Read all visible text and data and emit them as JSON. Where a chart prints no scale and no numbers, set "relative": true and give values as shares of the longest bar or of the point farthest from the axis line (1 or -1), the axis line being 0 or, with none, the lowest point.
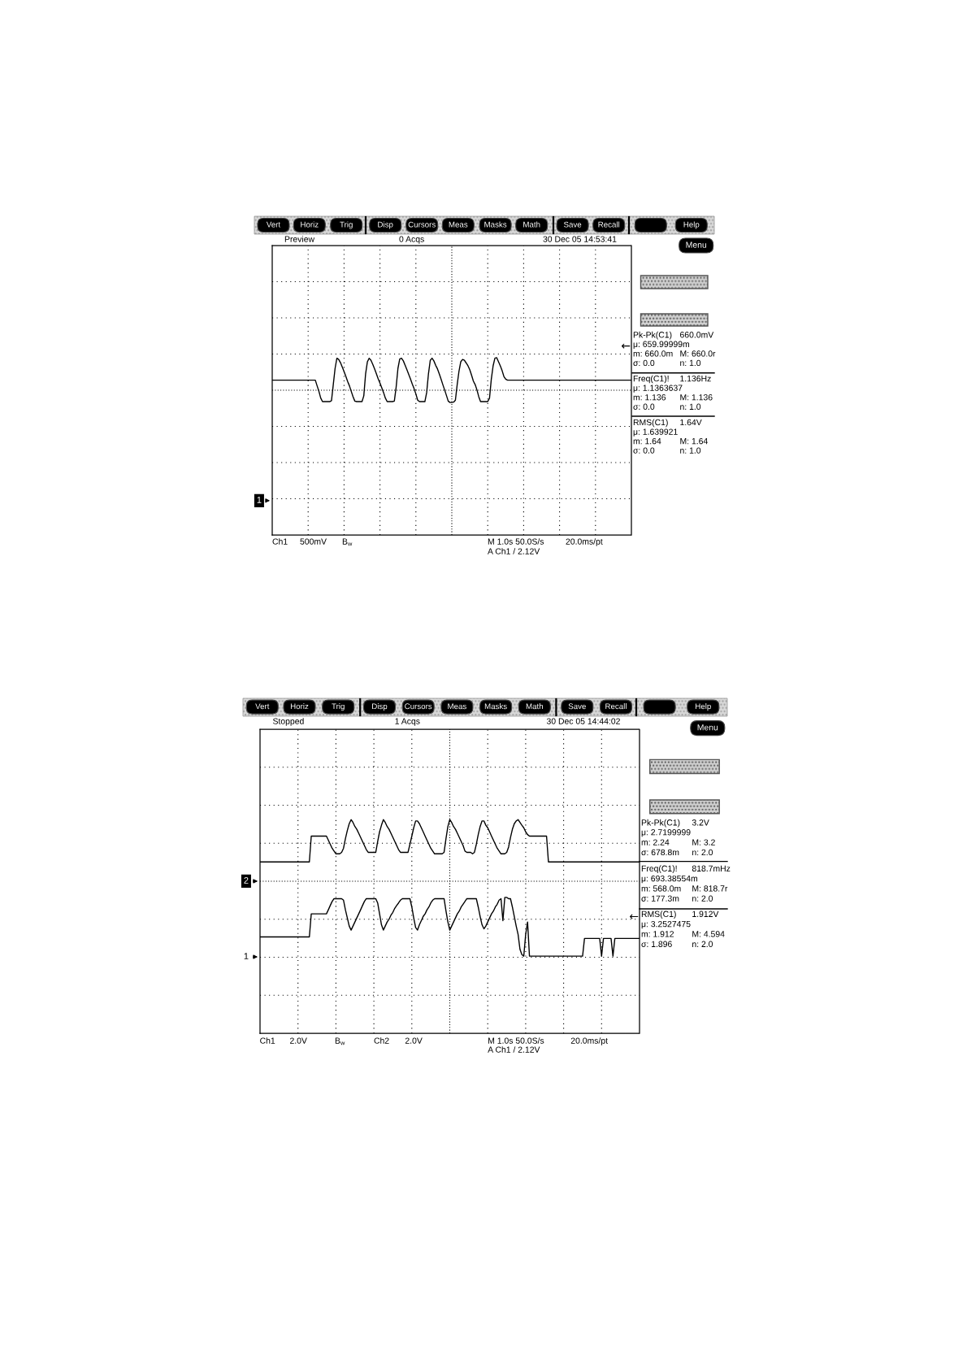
{
  "chart_data": [
    {
      "type": "line",
      "relative": true,
      "grid": true,
      "line_style": "solid",
      "categories": [
        null,
        null,
        null,
        null,
        null,
        null,
        null,
        null,
        null,
        null,
        null,
        null,
        null,
        null,
        null,
        null,
        null,
        null,
        null,
        null,
        null,
        null,
        null,
        null,
        null,
        null,
        null,
        null,
        null,
        null,
        null,
        null,
        null,
        null,
        null,
        null,
        null,
        null,
        null,
        null,
        null,
        null,
        null,
        null,
        null,
        null,
        null,
        null,
        null,
        null,
        null,
        null,
        null,
        null,
        null,
        null,
        null,
        null,
        null,
        null,
        null,
        null,
        null,
        null,
        null,
        null,
        null,
        null,
        null,
        null,
        null,
        null,
        null,
        null,
        null,
        null,
        null,
        null,
        null,
        null,
        null,
        null,
        null,
        null,
        null,
        null,
        null,
        null,
        null,
        null,
        null,
        null,
        null,
        null,
        null,
        null,
        null,
        null,
        null,
        null,
        null,
        null,
        null,
        null,
        null,
        null,
        null,
        null,
        null,
        null,
        null,
        null,
        null,
        null,
        null,
        null,
        null,
        null,
        null,
        null,
        null,
        null,
        null,
        null,
        null,
        null,
        null,
        null,
        null,
        null,
        null,
        null,
        null,
        null,
        null,
        null,
        null,
        null,
        null,
        null,
        null,
        null,
        null,
        null,
        null,
        null,
        null,
        null,
        null,
        null,
        null,
        null,
        null,
        null,
        null,
        null,
        null,
        null,
        null,
        null,
        null,
        null,
        null,
        null,
        null,
        null,
        null,
        null,
        null,
        null,
        null,
        null,
        null,
        null,
        null,
        null,
        null,
        null,
        null,
        null,
        null,
        null,
        null,
        null,
        null,
        null,
        null,
        null,
        null,
        null,
        null,
        null,
        null,
        null,
        null,
        null,
        null,
        null,
        null,
        null,
        null
      ],
      "series": [
        {
          "color": "#000000",
          "values": [
            0.873,
            0.873,
            0.873,
            0.873,
            0.873,
            0.873,
            0.873,
            0.873,
            0.873,
            0.873,
            0.873,
            0.873,
            0.873,
            0.873,
            0.873,
            0.873,
            0.873,
            0.873,
            0.873,
            0.873,
            0.873,
            0.873,
            0.873,
            0.873,
            0.873,
            0.841,
            0.81,
            0.772,
            0.752,
            0.752,
            0.752,
            0.752,
            0.752,
            0.757,
            0.848,
            0.939,
            0.997,
            0.99,
            0.972,
            0.947,
            0.922,
            0.894,
            0.866,
            0.841,
            0.81,
            0.78,
            0.755,
            0.752,
            0.752,
            0.752,
            0.752,
            0.785,
            0.909,
            0.977,
            0.997,
            0.985,
            0.962,
            0.937,
            0.909,
            0.881,
            0.856,
            0.83,
            0.803,
            0.772,
            0.752,
            0.752,
            0.752,
            0.752,
            0.755,
            0.833,
            0.939,
            0.992,
            0.997,
            0.982,
            0.957,
            0.932,
            0.906,
            0.879,
            0.851,
            0.825,
            0.795,
            0.76,
            0.752,
            0.752,
            0.752,
            0.752,
            0.803,
            0.909,
            0.985,
            0.997,
            0.982,
            0.957,
            0.937,
            0.909,
            0.879,
            0.848,
            0.818,
            0.787,
            0.755,
            0.747,
            0.747,
            0.749,
            0.76,
            0.848,
            0.924,
            0.977,
            0.99,
            0.985,
            0.97,
            0.954,
            0.932,
            0.901,
            0.868,
            0.848,
            0.818,
            0.78,
            0.752,
            0.752,
            0.752,
            0.752,
            0.752,
            0.772,
            0.879,
            0.954,
            0.997,
            1.0,
            0.977,
            0.954,
            0.927,
            0.894,
            0.879,
            0.873,
            0.873,
            0.873,
            0.873,
            0.873,
            0.873,
            0.873,
            0.873,
            0.873,
            0.873,
            0.873,
            0.873,
            0.873,
            0.873,
            0.873,
            0.873,
            0.873,
            0.873,
            0.873,
            0.873,
            0.873,
            0.873,
            0.873,
            0.873,
            0.873,
            0.873,
            0.873,
            0.873,
            0.873,
            0.873,
            0.873,
            0.873,
            0.873,
            0.873,
            0.873,
            0.873,
            0.873,
            0.873,
            0.873,
            0.873,
            0.873,
            0.873,
            0.873,
            0.873,
            0.873,
            0.873,
            0.873,
            0.873,
            0.873,
            0.873,
            0.873,
            0.873,
            0.873,
            0.873,
            0.873,
            0.873,
            0.873,
            0.873,
            0.873,
            0.873,
            0.873,
            0.873,
            0.873,
            0.873,
            0.873,
            0.873,
            0.873,
            0.873,
            0.873,
            0.873
          ]
        }
      ],
      "annotations": [
        "Vert",
        "Horiz",
        "Trig",
        "Disp",
        "Cursors",
        "Meas",
        "Masks",
        "Math",
        "Save",
        "Recall",
        "Help",
        "Menu",
        "Preview",
        "0 Acqs",
        "30 Dec 05 14:53:41",
        "Pk-Pk(C1)",
        "660.0mV",
        "μ: 659.99999m",
        "m: 660.0m",
        "M: 660.0r",
        "σ: 0.0",
        "n: 1.0",
        "Freq(C1)!",
        "1.136Hz",
        "μ: 1.1363637",
        "m: 1.136",
        "M: 1.136",
        "σ: 0.0",
        "n: 1.0",
        "RMS(C1)",
        "1.64V",
        "μ: 1.639921",
        "m: 1.64",
        "M: 1.64",
        "σ: 0.0",
        "n: 1.0",
        "Ch1",
        "500mV",
        "B$_{w}$",
        "M 1.0s 50.0S/s",
        "20.0ms/pt",
        "A Ch1 / 2.12V",
        "1",
        "←"
      ]
    },
    {
      "type": "line",
      "relative": true,
      "grid": true,
      "line_style": "solid",
      "categories": [
        null,
        null,
        null,
        null,
        null,
        null,
        null,
        null,
        null,
        null,
        null,
        null,
        null,
        null,
        null,
        null,
        null,
        null,
        null,
        null,
        null,
        null,
        null,
        null,
        null,
        null,
        null,
        null,
        null,
        null,
        null,
        null,
        null,
        null,
        null,
        null,
        null,
        null,
        null,
        null,
        null,
        null,
        null,
        null,
        null,
        null,
        null,
        null,
        null,
        null,
        null,
        null,
        null,
        null,
        null,
        null,
        null,
        null,
        null,
        null,
        null,
        null,
        null,
        null,
        null,
        null,
        null,
        null,
        null,
        null,
        null,
        null,
        null,
        null,
        null,
        null,
        null,
        null,
        null,
        null,
        null,
        null,
        null,
        null,
        null,
        null,
        null,
        null,
        null,
        null,
        null,
        null,
        null,
        null,
        null,
        null,
        null,
        null,
        null,
        null,
        null,
        null,
        null,
        null,
        null,
        null,
        null,
        null,
        null,
        null,
        null,
        null,
        null,
        null,
        null,
        null,
        null,
        null,
        null,
        null,
        null,
        null,
        null,
        null,
        null,
        null,
        null,
        null,
        null,
        null,
        null,
        null,
        null,
        null,
        null,
        null,
        null,
        null,
        null,
        null,
        null,
        null,
        null,
        null,
        null,
        null,
        null,
        null,
        null,
        null,
        null,
        null,
        null,
        null,
        null,
        null,
        null,
        null,
        null,
        null,
        null,
        null,
        null,
        null,
        null,
        null,
        null,
        null,
        null,
        null,
        null,
        null,
        null,
        null,
        null,
        null,
        null,
        null,
        null,
        null,
        null,
        null,
        null,
        null,
        null,
        null,
        null,
        null,
        null,
        null,
        null,
        null,
        null,
        null,
        null,
        null,
        null,
        null,
        null,
        null,
        null
      ],
      "series": [
        {
          "color": "#000000",
          "values": [
            0.802,
            0.802,
            0.802,
            0.802,
            0.802,
            0.802,
            0.802,
            0.802,
            0.802,
            0.802,
            0.802,
            0.802,
            0.802,
            0.802,
            0.802,
            0.802,
            0.802,
            0.802,
            0.802,
            0.802,
            0.802,
            0.802,
            0.802,
            0.802,
            0.802,
            0.802,
            0.802,
            0.923,
            0.923,
            0.923,
            0.923,
            0.923,
            0.923,
            0.923,
            0.923,
            0.923,
            0.904,
            0.885,
            0.866,
            0.853,
            0.84,
            0.84,
            0.84,
            0.847,
            0.866,
            0.911,
            0.949,
            0.981,
            1.0,
            0.987,
            0.968,
            0.955,
            0.936,
            0.917,
            0.898,
            0.879,
            0.86,
            0.847,
            0.847,
            0.847,
            0.847,
            0.847,
            0.898,
            0.943,
            0.974,
            1.0,
            0.987,
            0.968,
            0.955,
            0.936,
            0.917,
            0.898,
            0.879,
            0.86,
            0.847,
            0.847,
            0.847,
            0.847,
            0.847,
            0.885,
            0.923,
            0.962,
            0.994,
            0.994,
            0.981,
            0.962,
            0.943,
            0.923,
            0.904,
            0.885,
            0.866,
            0.853,
            0.84,
            0.84,
            0.84,
            0.84,
            0.84,
            0.847,
            0.911,
            0.968,
            1.0,
            0.987,
            0.968,
            0.955,
            0.936,
            0.917,
            0.898,
            0.879,
            0.853,
            0.847,
            0.847,
            0.847,
            0.84,
            0.847,
            0.885,
            0.93,
            0.968,
            0.994,
            0.994,
            0.974,
            0.962,
            0.943,
            0.923,
            0.904,
            0.885,
            0.866,
            0.853,
            0.84,
            0.84,
            0.84,
            0.847,
            0.872,
            0.917,
            0.955,
            0.981,
            0.994,
            1.0,
            0.987,
            0.974,
            0.962,
            0.943,
            0.93,
            0.923,
            0.923,
            0.923,
            0.923,
            0.923,
            0.923,
            0.923,
            0.923,
            0.923,
            0.923,
            0.802,
            0.802,
            0.802,
            0.802,
            0.802,
            0.802,
            0.802,
            0.802,
            0.802,
            0.802,
            0.802,
            0.802,
            0.802,
            0.802,
            0.802,
            0.802,
            0.802,
            0.802,
            0.802,
            0.802,
            0.802,
            0.802,
            0.802,
            0.802,
            0.802,
            0.802,
            0.802,
            0.802,
            0.802,
            0.802,
            0.802,
            0.802,
            0.802,
            0.802,
            0.802,
            0.802,
            0.802,
            0.802,
            0.802,
            0.802,
            0.802,
            0.802,
            0.802,
            0.802,
            0.802,
            0.802,
            0.802,
            0.802,
            0.802
          ]
        },
        {
          "color": "#000000",
          "values": [
            0.451,
            0.451,
            0.451,
            0.451,
            0.451,
            0.451,
            0.451,
            0.451,
            0.451,
            0.451,
            0.451,
            0.451,
            0.451,
            0.451,
            0.451,
            0.451,
            0.451,
            0.451,
            0.451,
            0.451,
            0.451,
            0.451,
            0.451,
            0.451,
            0.451,
            0.451,
            0.451,
            0.559,
            0.559,
            0.559,
            0.559,
            0.559,
            0.559,
            0.559,
            0.559,
            0.559,
            0.578,
            0.598,
            0.617,
            0.63,
            0.63,
            0.63,
            0.63,
            0.63,
            0.623,
            0.578,
            0.54,
            0.502,
            0.483,
            0.502,
            0.521,
            0.54,
            0.559,
            0.578,
            0.598,
            0.617,
            0.63,
            0.63,
            0.63,
            0.63,
            0.63,
            0.63,
            0.61,
            0.559,
            0.508,
            0.483,
            0.502,
            0.521,
            0.534,
            0.553,
            0.566,
            0.585,
            0.598,
            0.61,
            0.623,
            0.63,
            0.63,
            0.63,
            0.63,
            0.63,
            0.591,
            0.54,
            0.495,
            0.483,
            0.508,
            0.527,
            0.547,
            0.559,
            0.578,
            0.591,
            0.61,
            0.623,
            0.63,
            0.63,
            0.63,
            0.63,
            0.63,
            0.63,
            0.572,
            0.521,
            0.483,
            0.502,
            0.521,
            0.54,
            0.559,
            0.572,
            0.591,
            0.604,
            0.617,
            0.63,
            0.63,
            0.63,
            0.63,
            0.63,
            0.63,
            0.591,
            0.547,
            0.508,
            0.489,
            0.502,
            0.521,
            0.54,
            0.559,
            0.572,
            0.591,
            0.604,
            0.623,
            0.63,
            0.527,
            0.636,
            0.636,
            0.63,
            0.63,
            0.591,
            0.547,
            0.502,
            0.463,
            0.393,
            0.368,
            0.361,
            0.463,
            0.521,
            0.361,
            0.361,
            0.361,
            0.361,
            0.361,
            0.361,
            0.361,
            0.361,
            0.361,
            0.361,
            0.361,
            0.361,
            0.361,
            0.361,
            0.361,
            0.361,
            0.361,
            0.361,
            0.361,
            0.361,
            0.361,
            0.361,
            0.361,
            0.361,
            0.361,
            0.361,
            0.361,
            0.361,
            0.361,
            0.444,
            0.444,
            0.444,
            0.444,
            0.444,
            0.444,
            0.444,
            0.444,
            0.444,
            0.361,
            0.444,
            0.444,
            0.444,
            0.444,
            0.444,
            0.361,
            0.444,
            0.444,
            0.444,
            0.444,
            0.444,
            0.444,
            0.444,
            0.444,
            0.444,
            0.444,
            0.444,
            0.444,
            0.444,
            0.444
          ]
        }
      ],
      "annotations": [
        "Vert",
        "Horiz",
        "Trig",
        "Disp",
        "Cursors",
        "Meas",
        "Masks",
        "Math",
        "Save",
        "Recall",
        "Help",
        "Menu",
        "Stopped",
        "1 Acqs",
        "30 Dec 05 14:44:02",
        "Pk-Pk(C1)",
        "3.2V",
        "μ: 2.7199999",
        "m: 2.24",
        "M: 3.2",
        "σ: 678.8m",
        "n: 2.0",
        "Freq(C1)!",
        "818.7mHz",
        "μ: 693.38554m",
        "m: 568.0m",
        "M: 818.7r",
        "σ: 177.3m",
        "n: 2.0",
        "RMS(C1)",
        "1.912V",
        "μ: 3.2527475",
        "m: 1.912",
        "M: 4.594",
        "σ: 1.896",
        "n: 2.0",
        "Ch1",
        "2.0V",
        "B$_{w}$",
        "Ch2",
        "2.0V",
        "M 1.0s 50.0S/s",
        "20.0ms/pt",
        "A Ch1 / 2.12V",
        "2",
        "1",
        "←"
      ]
    }
  ]
}
